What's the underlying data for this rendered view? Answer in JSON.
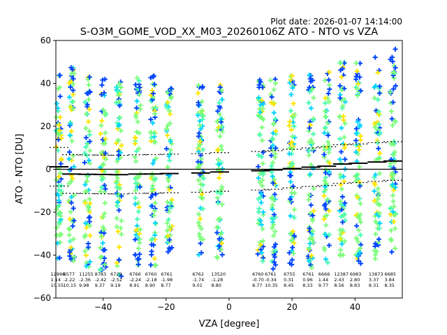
{
  "chart_data": {
    "type": "scatter",
    "title": "S-O3M_GOME_VOD_XX_M03_20260106Z ATO - NTO vs VZA",
    "plot_date": "Plot date: 2026-01-07 14:14:00",
    "xlabel": "VZA [degree]",
    "ylabel": "ATO - NTO [DU]",
    "xlim": [
      -55,
      55
    ],
    "ylim": [
      -60,
      60
    ],
    "xticks": [
      -40,
      -20,
      0,
      20,
      40
    ],
    "yticks": [
      -60,
      -40,
      -20,
      0,
      20,
      40,
      60
    ],
    "zero_line": 0,
    "columns": [
      {
        "vza": -54,
        "lo": -42,
        "hi": 44,
        "count": "12998",
        "mean": "1.14",
        "std": "10.55"
      },
      {
        "vza": -50,
        "lo": -45,
        "hi": 48,
        "count": "6577",
        "mean": "-2.22",
        "std": "10.15"
      },
      {
        "vza": -45,
        "lo": -46,
        "hi": 46,
        "count": "11255",
        "mean": "-2.36",
        "std": "9.98"
      },
      {
        "vza": -40,
        "lo": -48,
        "hi": 46,
        "count": "8783",
        "mean": "-2.42",
        "std": "9.37"
      },
      {
        "vza": -35,
        "lo": -50,
        "hi": 44,
        "count": "6729",
        "mean": "-2.52",
        "std": "9.19"
      },
      {
        "vza": -29,
        "lo": -45,
        "hi": 44,
        "count": "6766",
        "mean": "-2.24",
        "std": "8.91"
      },
      {
        "vza": -24,
        "lo": -45,
        "hi": 44,
        "count": "6760",
        "mean": "-2.18",
        "std": "8.90"
      },
      {
        "vza": -19,
        "lo": -40,
        "hi": 40,
        "count": "6761",
        "mean": "-1.98",
        "std": "8.77"
      },
      {
        "vza": -9,
        "lo": -40,
        "hi": 40,
        "count": "6762",
        "mean": "-1.74",
        "std": "9.01"
      },
      {
        "vza": -3,
        "lo": -42,
        "hi": 40,
        "count": "13520",
        "mean": "-1.28",
        "std": "8.80"
      },
      {
        "vza": 10,
        "lo": -45,
        "hi": 42,
        "count": "6760",
        "mean": "-0.70",
        "std": "8.77"
      },
      {
        "vza": 14,
        "lo": -48,
        "hi": 44,
        "count": "6761",
        "mean": "-0.34",
        "std": "10.35"
      },
      {
        "vza": 20,
        "lo": -45,
        "hi": 44,
        "count": "6755",
        "mean": "0.31",
        "std": "8.45"
      },
      {
        "vza": 26,
        "lo": -46,
        "hi": 46,
        "count": "6761",
        "mean": "0.96",
        "std": "8.33"
      },
      {
        "vza": 31,
        "lo": -47,
        "hi": 48,
        "count": "6666",
        "mean": "1.44",
        "std": "9.77"
      },
      {
        "vza": 36,
        "lo": -45,
        "hi": 50,
        "count": "12387",
        "mean": "2.43",
        "std": "8.56"
      },
      {
        "vza": 41,
        "lo": -44,
        "hi": 52,
        "count": "6983",
        "mean": "2.80",
        "std": "8.83"
      },
      {
        "vza": 47,
        "lo": -42,
        "hi": 55,
        "count": "13873",
        "mean": "3.37",
        "std": "8.31"
      },
      {
        "vza": 52,
        "lo": -40,
        "hi": 56,
        "count": "6685",
        "mean": "3.84",
        "std": "8.35"
      }
    ],
    "mean_line_dashed_offset": 9,
    "series_colors": [
      "#7cff79",
      "#7cff79",
      "#7cff79",
      "#00d4ff",
      "#ffe600",
      "#0044ff",
      "#46ffb2"
    ]
  }
}
